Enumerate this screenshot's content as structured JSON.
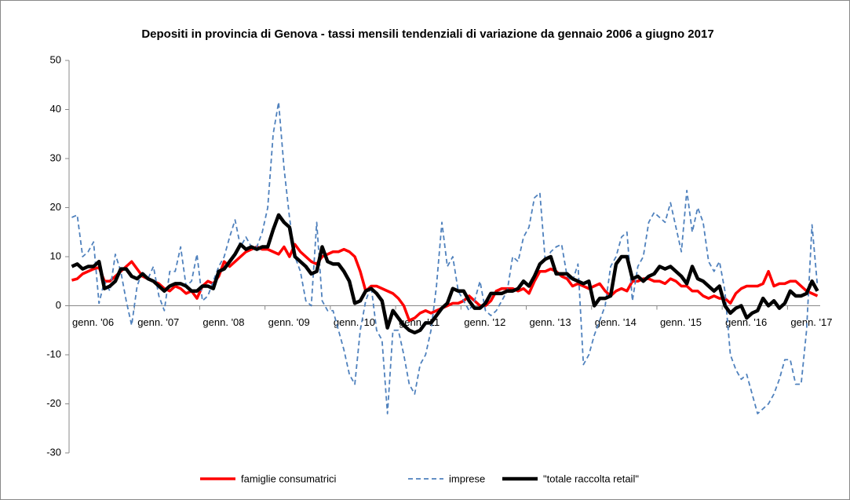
{
  "chart_data": {
    "type": "line",
    "title": "Depositi in provincia di Genova - tassi mensili tendenziali di variazione da gennaio 2006  a giugno  2017",
    "categories": [
      "genn. '06",
      null,
      null,
      null,
      null,
      null,
      null,
      null,
      null,
      null,
      null,
      null,
      "genn. '07",
      null,
      null,
      null,
      null,
      null,
      null,
      null,
      null,
      null,
      null,
      null,
      "genn. '08",
      null,
      null,
      null,
      null,
      null,
      null,
      null,
      null,
      null,
      null,
      null,
      "genn. '09",
      null,
      null,
      null,
      null,
      null,
      null,
      null,
      null,
      null,
      null,
      null,
      "genn. '10",
      null,
      null,
      null,
      null,
      null,
      null,
      null,
      null,
      null,
      null,
      null,
      "genn. '11",
      null,
      null,
      null,
      null,
      null,
      null,
      null,
      null,
      null,
      null,
      null,
      "genn. '12",
      null,
      null,
      null,
      null,
      null,
      null,
      null,
      null,
      null,
      null,
      null,
      "genn. '13",
      null,
      null,
      null,
      null,
      null,
      null,
      null,
      null,
      null,
      null,
      null,
      "genn. '14",
      null,
      null,
      null,
      null,
      null,
      null,
      null,
      null,
      null,
      null,
      null,
      "genn. '15",
      null,
      null,
      null,
      null,
      null,
      null,
      null,
      null,
      null,
      null,
      null,
      "genn. '16",
      null,
      null,
      null,
      null,
      null,
      null,
      null,
      null,
      null,
      null,
      null,
      "genn. '17",
      null,
      null,
      null,
      null,
      null
    ],
    "series": [
      {
        "name": "famiglie consumatrici",
        "color": "#ff0000",
        "dash": false,
        "width": 3.5,
        "values": [
          5.2,
          5.5,
          6.5,
          7,
          7.5,
          7.8,
          5,
          5,
          6,
          7,
          8,
          9,
          7.5,
          6,
          5.5,
          5,
          4.5,
          3.5,
          3,
          4,
          3.5,
          2.5,
          3,
          1.5,
          4,
          5,
          4.5,
          6,
          9,
          8,
          9,
          10,
          11,
          11.5,
          12,
          11.5,
          11.5,
          11,
          10.5,
          12,
          10,
          12.5,
          11,
          10,
          9,
          8.5,
          10,
          10.5,
          11,
          11,
          11.5,
          11,
          10,
          7,
          3,
          4,
          4,
          3.5,
          3,
          2.5,
          1.5,
          0,
          -3,
          -2.5,
          -1.5,
          -1,
          -1.5,
          -1,
          -0.5,
          0,
          0.5,
          0.5,
          1,
          2,
          1,
          0,
          0,
          1,
          3,
          3.5,
          3.5,
          3.5,
          3,
          3.5,
          2.5,
          5,
          7,
          7,
          7.5,
          7,
          6,
          5.5,
          4,
          4.5,
          4,
          3.5,
          4,
          4.5,
          3,
          2,
          3,
          3.5,
          3,
          5,
          5,
          5.5,
          5.5,
          5,
          5,
          4.5,
          5.5,
          5,
          4,
          4,
          3,
          3,
          2,
          1.5,
          2,
          1.5,
          1.5,
          0.5,
          2.5,
          3.5,
          4,
          4,
          4,
          4.5,
          7,
          4,
          4.5,
          4.5,
          5,
          5,
          4,
          3,
          2.5,
          2
        ]
      },
      {
        "name": "imprese",
        "color": "#4f81bd",
        "dash": true,
        "width": 1.8,
        "values": [
          18,
          18.5,
          10,
          11,
          13,
          0.5,
          5,
          3,
          10.5,
          7,
          1,
          -4,
          4,
          7,
          5.5,
          8,
          2,
          -1,
          7,
          7,
          12,
          4,
          5,
          10.5,
          1,
          2,
          5,
          8,
          10,
          14,
          17.5,
          12,
          14,
          12,
          12,
          15,
          20,
          35,
          41.5,
          28,
          18,
          10,
          7,
          1,
          0,
          17,
          1,
          -1,
          -1,
          -5,
          -9,
          -14,
          -16,
          -5,
          1,
          4,
          -5,
          -7,
          -22,
          -5,
          -5,
          -10,
          -16,
          -18,
          -12,
          -10,
          -5,
          4,
          17,
          8,
          10,
          3,
          1,
          -1,
          1,
          5,
          -1,
          -2,
          -1,
          1,
          3,
          10,
          9,
          14,
          16,
          22,
          23,
          9,
          11,
          12,
          12.5,
          6,
          5,
          8.5,
          -12,
          -10,
          -6,
          -3,
          0,
          8,
          10,
          14,
          15,
          1,
          8,
          10,
          17,
          19,
          18,
          17,
          21,
          16,
          11,
          23.5,
          15,
          20,
          17,
          9,
          7,
          9,
          3,
          -10,
          -13,
          -15,
          -14,
          -18,
          -22,
          -21,
          -20,
          -18,
          -15,
          -11,
          -11,
          -16,
          -16,
          -5,
          16.5,
          4
        ]
      },
      {
        "name": "\"totale raccolta retail\"",
        "color": "#000000",
        "dash": false,
        "width": 4.5,
        "values": [
          8,
          8.5,
          7.5,
          8,
          8,
          9,
          3.5,
          4,
          5,
          7.5,
          7.5,
          6,
          5.5,
          6.5,
          5.5,
          5,
          4,
          3,
          4,
          4.5,
          4.5,
          4,
          3,
          3,
          4,
          4,
          3.5,
          7,
          7.5,
          9,
          10.5,
          12.5,
          11.5,
          12,
          11.5,
          12,
          12,
          15.5,
          18.5,
          17,
          16,
          10,
          9,
          8,
          6.5,
          7,
          12,
          9,
          8.5,
          8.5,
          7,
          5,
          0.5,
          1,
          3,
          3.5,
          2.5,
          1,
          -4.5,
          -1,
          -2.5,
          -4,
          -5,
          -5.5,
          -5,
          -3.5,
          -3.5,
          -2,
          -0.5,
          0.5,
          3.5,
          3,
          3,
          1,
          -0.5,
          -0.5,
          0.5,
          2.5,
          2.5,
          2.5,
          3,
          3,
          3.5,
          5,
          4,
          6,
          8.5,
          9.5,
          10,
          6.5,
          6.5,
          6.5,
          5.5,
          5,
          4.5,
          5,
          0,
          1.5,
          1.5,
          2,
          8.5,
          10,
          10,
          5.5,
          6,
          5,
          6,
          6.5,
          8,
          7.5,
          8,
          7,
          6,
          4.5,
          8,
          5.5,
          5,
          4,
          3,
          4,
          0,
          -1.5,
          -0.5,
          0,
          -2.5,
          -1.5,
          -1,
          1.5,
          0,
          1,
          -0.5,
          0.5,
          3,
          2,
          2,
          2.5,
          5,
          3
        ]
      }
    ],
    "ylim": [
      -30,
      50
    ],
    "yticks": [
      -30,
      -20,
      -10,
      0,
      10,
      20,
      30,
      40,
      50
    ],
    "legend": "bottom"
  }
}
